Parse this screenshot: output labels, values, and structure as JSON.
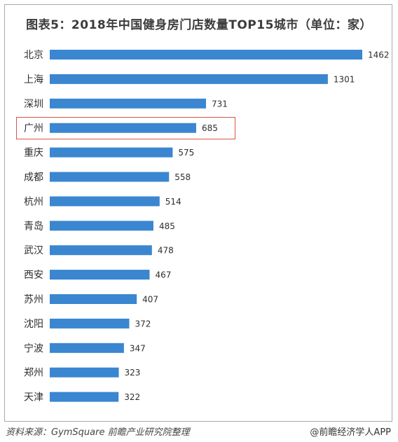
{
  "chart_data": {
    "type": "bar",
    "orientation": "horizontal",
    "title": "图表5：2018年中国健身房门店数量TOP15城市（单位：家）",
    "categories": [
      "北京",
      "上海",
      "深圳",
      "广州",
      "重庆",
      "成都",
      "杭州",
      "青岛",
      "武汉",
      "西安",
      "苏州",
      "沈阳",
      "宁波",
      "郑州",
      "天津"
    ],
    "values": [
      1462,
      1301,
      731,
      685,
      575,
      558,
      514,
      485,
      478,
      467,
      407,
      372,
      347,
      323,
      322
    ],
    "highlighted_category": "广州",
    "xlim": [
      0,
      1462
    ],
    "grid": false,
    "bar_color": "#3a86d0",
    "highlight_color": "#d9534f"
  },
  "footer": {
    "source": "资料来源：GymSquare 前瞻产业研究院整理",
    "credit": "@前瞻经济学人APP"
  }
}
